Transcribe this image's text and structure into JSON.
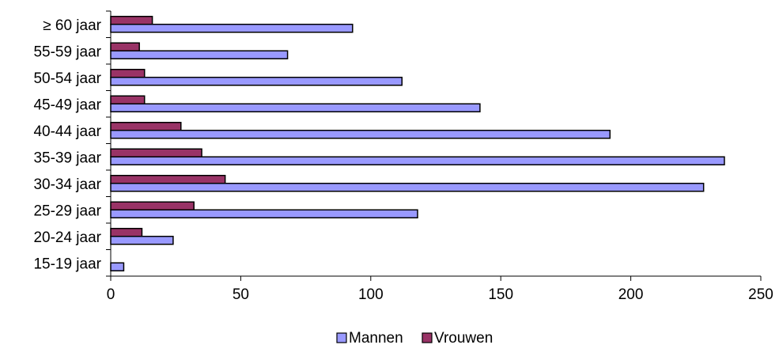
{
  "chart_data": {
    "type": "bar",
    "orientation": "horizontal",
    "categories": [
      "15-19 jaar",
      "20-24 jaar",
      "25-29 jaar",
      "30-34 jaar",
      "35-39 jaar",
      "40-44 jaar",
      "45-49 jaar",
      "50-54 jaar",
      "55-59 jaar",
      "≥ 60 jaar"
    ],
    "series": [
      {
        "name": "Mannen",
        "color": "#9999ff",
        "values": [
          5,
          24,
          118,
          228,
          236,
          192,
          142,
          112,
          68,
          93
        ]
      },
      {
        "name": "Vrouwen",
        "color": "#993366",
        "values": [
          0,
          12,
          32,
          44,
          35,
          27,
          13,
          13,
          11,
          16
        ]
      }
    ],
    "xlim": [
      0,
      250
    ],
    "xticks": [
      0,
      50,
      100,
      150,
      200,
      250
    ],
    "title": "",
    "xlabel": "",
    "ylabel": "",
    "grid": false,
    "legend_position": "bottom"
  }
}
